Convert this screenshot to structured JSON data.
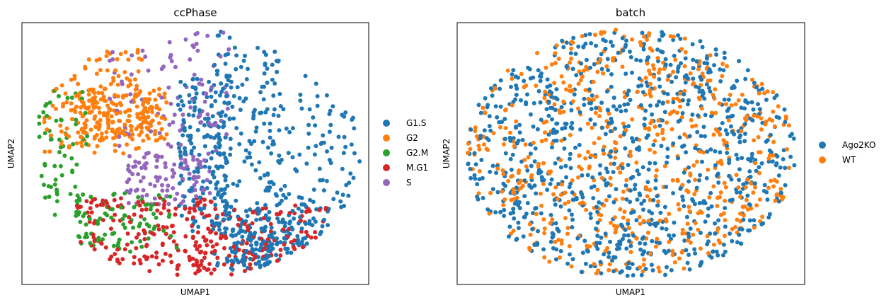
{
  "chart_data": [
    {
      "type": "scatter",
      "title": "ccPhase",
      "xlabel": "UMAP1",
      "ylabel": "UMAP2",
      "xlim": [
        0,
        1
      ],
      "ylim": [
        0,
        1
      ],
      "grid": false,
      "ticks": false,
      "legend_position": "right",
      "point_count_approx": 1500,
      "series": [
        {
          "name": "G1.S",
          "color": "#1f77b4",
          "count": 620,
          "regions": [
            [
              0.55,
              0.72,
              0.04,
              0.98
            ],
            [
              0.7,
              0.98,
              0.15,
              0.9
            ],
            [
              0.45,
              0.6,
              0.2,
              0.8
            ],
            [
              0.6,
              0.85,
              0.05,
              0.25
            ]
          ]
        },
        {
          "name": "G2",
          "color": "#ff7f0e",
          "count": 300,
          "regions": [
            [
              0.06,
              0.35,
              0.5,
              0.9
            ],
            [
              0.15,
              0.42,
              0.55,
              0.75
            ]
          ]
        },
        {
          "name": "G2.M",
          "color": "#2ca02c",
          "count": 150,
          "regions": [
            [
              0.04,
              0.2,
              0.15,
              0.75
            ],
            [
              0.15,
              0.45,
              0.12,
              0.35
            ]
          ]
        },
        {
          "name": "M.G1",
          "color": "#d62728",
          "count": 300,
          "regions": [
            [
              0.15,
              0.55,
              0.03,
              0.33
            ],
            [
              0.5,
              0.88,
              0.03,
              0.3
            ]
          ]
        },
        {
          "name": "S",
          "color": "#9467bd",
          "count": 200,
          "regions": [
            [
              0.25,
              0.6,
              0.5,
              0.98
            ],
            [
              0.3,
              0.55,
              0.3,
              0.5
            ]
          ]
        }
      ]
    },
    {
      "type": "scatter",
      "title": "batch",
      "xlabel": "UMAP1",
      "ylabel": "UMAP2",
      "xlim": [
        0,
        1
      ],
      "ylim": [
        0,
        1
      ],
      "grid": false,
      "ticks": false,
      "legend_position": "right",
      "point_count_approx": 1500,
      "series": [
        {
          "name": "Ago2KO",
          "color": "#1f77b4",
          "count": 900
        },
        {
          "name": "WT",
          "color": "#ff7f0e",
          "count": 620
        }
      ]
    }
  ]
}
